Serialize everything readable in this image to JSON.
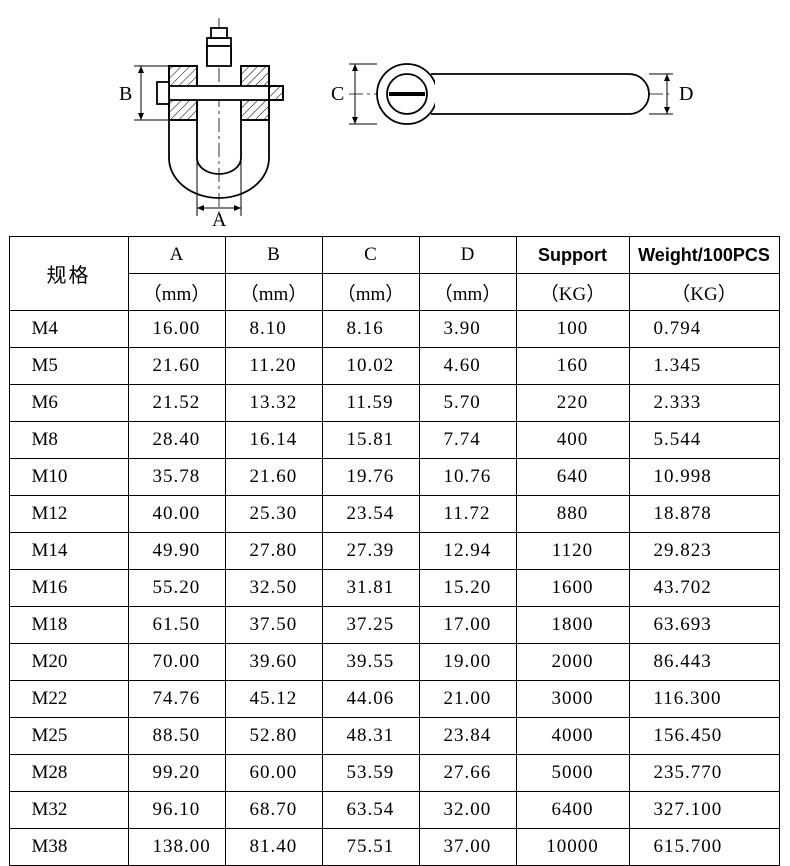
{
  "diagram": {
    "labels": {
      "A": "A",
      "B": "B",
      "C": "C",
      "D": "D"
    },
    "stroke": "#000000",
    "fill": "#ffffff",
    "hatch_fill": "#f2f2f2"
  },
  "table": {
    "header": {
      "spec": "规格",
      "A": "A",
      "A_unit": "（mm）",
      "B": "B",
      "B_unit": "（mm）",
      "C": "C",
      "C_unit": "（mm）",
      "D": "D",
      "D_unit": "（mm）",
      "support": "Support",
      "support_unit": "（KG）",
      "weight": "Weight/100PCS",
      "weight_unit": "（KG）"
    },
    "rows": [
      {
        "spec": "M4",
        "A": "16.00",
        "B": "8.10",
        "C": "8.16",
        "D": "3.90",
        "support": "100",
        "weight": "0.794"
      },
      {
        "spec": "M5",
        "A": "21.60",
        "B": "11.20",
        "C": "10.02",
        "D": "4.60",
        "support": "160",
        "weight": "1.345"
      },
      {
        "spec": "M6",
        "A": "21.52",
        "B": "13.32",
        "C": "11.59",
        "D": "5.70",
        "support": "220",
        "weight": "2.333"
      },
      {
        "spec": "M8",
        "A": "28.40",
        "B": "16.14",
        "C": "15.81",
        "D": "7.74",
        "support": "400",
        "weight": "5.544"
      },
      {
        "spec": "M10",
        "A": "35.78",
        "B": "21.60",
        "C": "19.76",
        "D": "10.76",
        "support": "640",
        "weight": "10.998"
      },
      {
        "spec": "M12",
        "A": "40.00",
        "B": "25.30",
        "C": "23.54",
        "D": "11.72",
        "support": "880",
        "weight": "18.878"
      },
      {
        "spec": "M14",
        "A": "49.90",
        "B": "27.80",
        "C": "27.39",
        "D": "12.94",
        "support": "1120",
        "weight": "29.823"
      },
      {
        "spec": "M16",
        "A": "55.20",
        "B": "32.50",
        "C": "31.81",
        "D": "15.20",
        "support": "1600",
        "weight": "43.702"
      },
      {
        "spec": "M18",
        "A": "61.50",
        "B": "37.50",
        "C": "37.25",
        "D": "17.00",
        "support": "1800",
        "weight": "63.693"
      },
      {
        "spec": "M20",
        "A": "70.00",
        "B": "39.60",
        "C": "39.55",
        "D": "19.00",
        "support": "2000",
        "weight": "86.443"
      },
      {
        "spec": "M22",
        "A": "74.76",
        "B": "45.12",
        "C": "44.06",
        "D": "21.00",
        "support": "3000",
        "weight": "116.300"
      },
      {
        "spec": "M25",
        "A": "88.50",
        "B": "52.80",
        "C": "48.31",
        "D": "23.84",
        "support": "4000",
        "weight": "156.450"
      },
      {
        "spec": "M28",
        "A": "99.20",
        "B": "60.00",
        "C": "53.59",
        "D": "27.66",
        "support": "5000",
        "weight": "235.770"
      },
      {
        "spec": "M32",
        "A": "96.10",
        "B": "68.70",
        "C": "63.54",
        "D": "32.00",
        "support": "6400",
        "weight": "327.100"
      },
      {
        "spec": "M38",
        "A": "138.00",
        "B": "81.40",
        "C": "75.51",
        "D": "37.00",
        "support": "10000",
        "weight": "615.700"
      }
    ]
  }
}
